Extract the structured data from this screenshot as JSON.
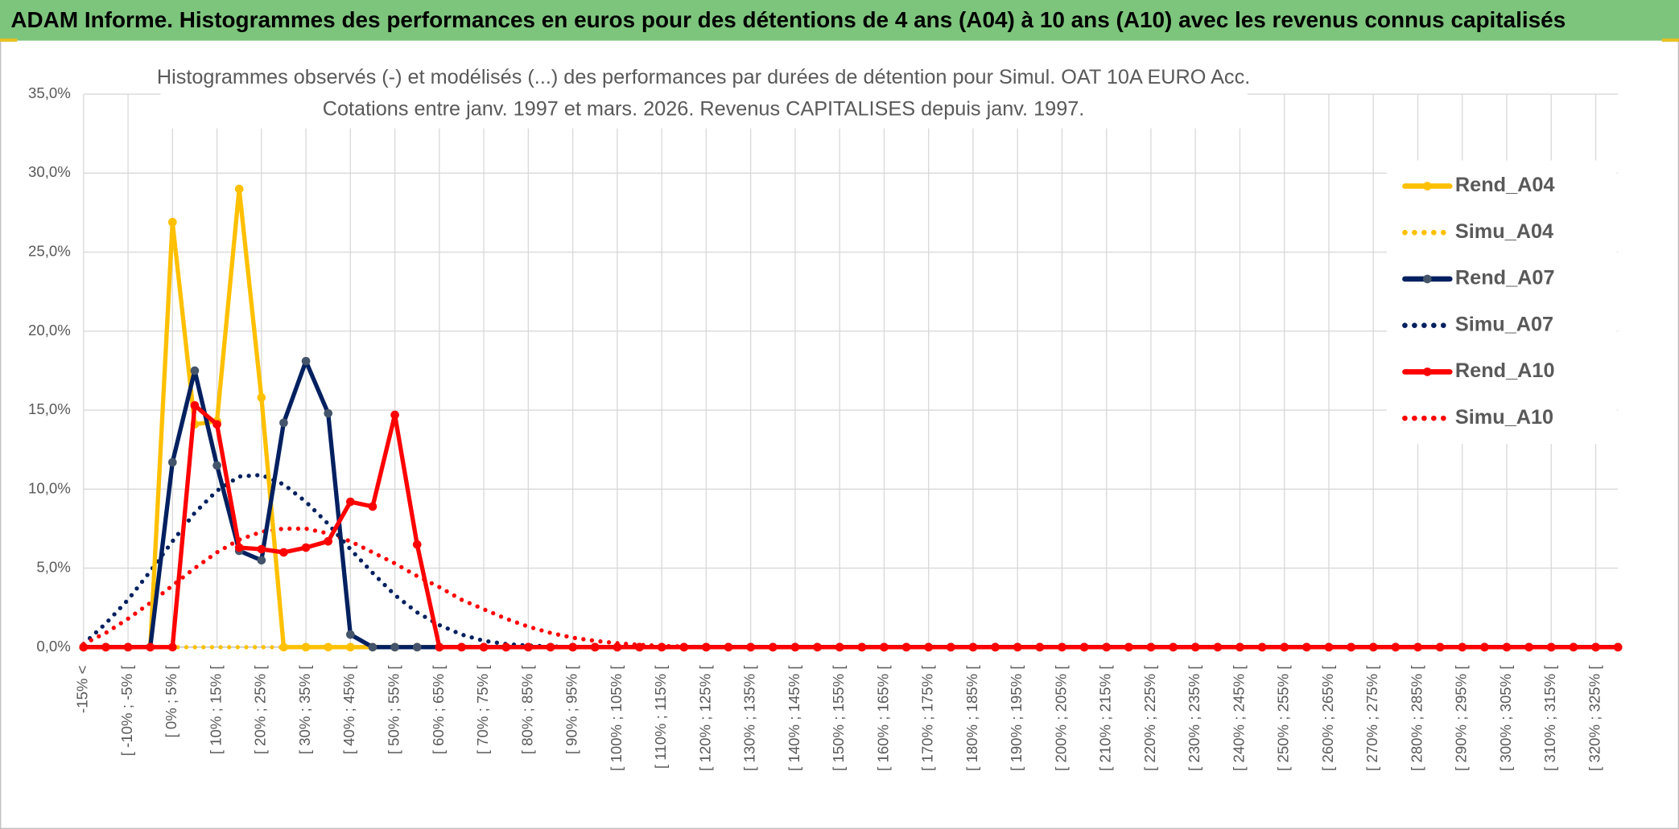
{
  "header": {
    "title": "ADAM Informe. Histogrammes des performances en euros pour des détentions de 4 ans (A04) à 10 ans (A10) avec les revenus connus capitalisés"
  },
  "chart_data": {
    "type": "line",
    "title": [
      "Histogrammes observés (-) et modélisés (...) des performances par durées de détention pour Simul. OAT 10A EURO Acc.",
      "Cotations entre janv. 1997 et mars. 2026. Revenus CAPITALISES depuis janv. 1997."
    ],
    "categories": [
      "-15% <",
      null,
      "[ -10% ; -5% [",
      null,
      "[ 0% ; 5% [",
      null,
      "[ 10% ; 15% [",
      null,
      "[ 20% ; 25% [",
      null,
      "[ 30% ; 35% [",
      null,
      "[ 40% ; 45% [",
      null,
      "[ 50% ; 55% [",
      null,
      "[ 60% ; 65% [",
      null,
      "[ 70% ; 75% [",
      null,
      "[ 80% ; 85% [",
      null,
      "[ 90% ; 95% [",
      null,
      "[ 100% ; 105% [",
      null,
      "[ 110% ; 115% [",
      null,
      "[ 120% ; 125% [",
      null,
      "[ 130% ; 135% [",
      null,
      "[ 140% ; 145% [",
      null,
      "[ 150% ; 155% [",
      null,
      "[ 160% ; 165% [",
      null,
      "[ 170% ; 175% [",
      null,
      "[ 180% ; 185% [",
      null,
      "[ 190% ; 195% [",
      null,
      "[ 200% ; 205% [",
      null,
      "[ 210% ; 215% [",
      null,
      "[ 220% ; 225% [",
      null,
      "[ 230% ; 235% [",
      null,
      "[ 240% ; 245% [",
      null,
      "[ 250% ; 255% [",
      null,
      "[ 260% ; 265% [",
      null,
      "[ 270% ; 275% [",
      null,
      "[ 280% ; 285% [",
      null,
      "[ 290% ; 295% [",
      null,
      "[ 300% ; 305% [",
      null,
      "[ 310% ; 315% [",
      null,
      "[ 320% ; 325% [",
      null
    ],
    "series": [
      {
        "name": "Rend_A04",
        "color": "#ffc000",
        "style": "solid",
        "markers": true,
        "values": [
          0,
          0,
          0,
          0,
          26.9,
          14.1,
          14.3,
          29.0,
          15.8,
          0,
          0,
          0,
          0,
          0,
          0,
          0,
          0,
          0,
          0,
          0,
          0,
          0,
          0,
          0,
          0,
          0,
          0,
          0,
          0,
          0,
          0,
          0,
          0,
          0,
          0,
          0,
          0,
          0,
          0,
          0,
          0,
          0,
          0,
          0,
          0,
          0,
          0,
          0,
          0,
          0,
          0,
          0,
          0,
          0,
          0,
          0,
          0,
          0,
          0,
          0,
          0,
          0,
          0,
          0,
          0,
          0,
          0,
          0,
          0,
          0
        ]
      },
      {
        "name": "Simu_A04",
        "color": "#ffc000",
        "style": "dotted",
        "markers": false,
        "values": [
          0,
          0,
          0,
          0,
          0,
          0,
          0,
          0,
          0,
          0,
          0,
          0,
          0,
          0,
          0,
          0,
          0,
          0,
          0,
          0,
          0,
          0,
          0,
          0,
          0,
          0,
          0,
          0,
          0,
          0,
          0,
          0,
          0,
          0,
          0,
          0,
          0,
          0,
          0,
          0,
          0,
          0,
          0,
          0,
          0,
          0,
          0,
          0,
          0,
          0,
          0,
          0,
          0,
          0,
          0,
          0,
          0,
          0,
          0,
          0,
          0,
          0,
          0,
          0,
          0,
          0,
          0,
          0,
          0,
          0
        ]
      },
      {
        "name": "Rend_A07",
        "color": "#002060",
        "style": "solid",
        "markers": true,
        "values": [
          0,
          0,
          0,
          0,
          11.7,
          17.5,
          11.5,
          6.1,
          5.5,
          14.2,
          18.1,
          14.8,
          0.8,
          0,
          0,
          0,
          0,
          0,
          0,
          0,
          0,
          0,
          0,
          0,
          0,
          0,
          0,
          0,
          0,
          0,
          0,
          0,
          0,
          0,
          0,
          0,
          0,
          0,
          0,
          0,
          0,
          0,
          0,
          0,
          0,
          0,
          0,
          0,
          0,
          0,
          0,
          0,
          0,
          0,
          0,
          0,
          0,
          0,
          0,
          0,
          0,
          0,
          0,
          0,
          0,
          0,
          0,
          0,
          0,
          0
        ]
      },
      {
        "name": "Simu_A07",
        "color": "#002060",
        "style": "dotted",
        "markers": false,
        "values": [
          0.2,
          1.5,
          3.0,
          4.8,
          6.7,
          8.5,
          9.9,
          10.8,
          10.9,
          10.3,
          9.2,
          7.8,
          6.2,
          4.7,
          3.3,
          2.2,
          1.4,
          0.8,
          0.4,
          0.2,
          0.1,
          0.05,
          0,
          0,
          0,
          0,
          0,
          0,
          0,
          0,
          0,
          0,
          0,
          0,
          0,
          0,
          0,
          0,
          0,
          0,
          0,
          0,
          0,
          0,
          0,
          0,
          0,
          0,
          0,
          0,
          0,
          0,
          0,
          0,
          0,
          0,
          0,
          0,
          0,
          0,
          0,
          0,
          0,
          0,
          0,
          0,
          0,
          0,
          0,
          0
        ]
      },
      {
        "name": "Rend_A10",
        "color": "#ff0000",
        "style": "solid",
        "markers": true,
        "values": [
          0,
          0,
          0,
          0,
          0,
          15.3,
          14.1,
          6.3,
          6.2,
          6.0,
          6.3,
          6.7,
          9.2,
          8.9,
          14.7,
          6.5,
          0,
          0,
          0,
          0,
          0,
          0,
          0,
          0,
          0,
          0,
          0,
          0,
          0,
          0,
          0,
          0,
          0,
          0,
          0,
          0,
          0,
          0,
          0,
          0,
          0,
          0,
          0,
          0,
          0,
          0,
          0,
          0,
          0,
          0,
          0,
          0,
          0,
          0,
          0,
          0,
          0,
          0,
          0,
          0,
          0,
          0,
          0,
          0,
          0,
          0,
          0,
          0,
          0,
          0
        ]
      },
      {
        "name": "Simu_A10",
        "color": "#ff0000",
        "style": "dotted",
        "markers": false,
        "values": [
          0.2,
          0.9,
          1.8,
          2.8,
          3.9,
          5.0,
          6.0,
          6.8,
          7.3,
          7.5,
          7.5,
          7.2,
          6.7,
          6.0,
          5.3,
          4.5,
          3.8,
          3.0,
          2.4,
          1.8,
          1.3,
          0.9,
          0.6,
          0.4,
          0.25,
          0.15,
          0.08,
          0.04,
          0,
          0,
          0,
          0,
          0,
          0,
          0,
          0,
          0,
          0,
          0,
          0,
          0,
          0,
          0,
          0,
          0,
          0,
          0,
          0,
          0,
          0,
          0,
          0,
          0,
          0,
          0,
          0,
          0,
          0,
          0,
          0,
          0,
          0,
          0,
          0,
          0,
          0,
          0,
          0,
          0,
          0
        ]
      }
    ],
    "ylim": [
      0,
      35
    ],
    "yticks": [
      {
        "value": 0,
        "label": "0,0%"
      },
      {
        "value": 5,
        "label": "5,0%"
      },
      {
        "value": 10,
        "label": "10,0%"
      },
      {
        "value": 15,
        "label": "15,0%"
      },
      {
        "value": 20,
        "label": "20,0%"
      },
      {
        "value": 25,
        "label": "25,0%"
      },
      {
        "value": 30,
        "label": "30,0%"
      },
      {
        "value": 35,
        "label": "35,0%"
      }
    ],
    "grid": true,
    "legend": "right"
  }
}
